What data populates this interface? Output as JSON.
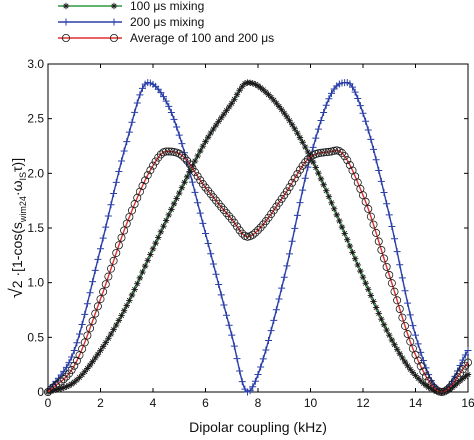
{
  "chart_data": {
    "type": "line",
    "xlabel": "Dipolar coupling (kHz)",
    "ylabel": "√2 ·[1-cos(s_wim24·ω_IS·τ)]",
    "ylabel_parts": {
      "root": "√",
      "two": "2",
      "dot_bracket": " ·[1-cos(s",
      "sub_wim": "wim24",
      "dot_omega": "·ω",
      "sub_is": "IS",
      "tau_close": "τ)]"
    },
    "xlim": [
      0,
      16
    ],
    "ylim": [
      0,
      3.0
    ],
    "xticks": [
      "0",
      "2",
      "4",
      "6",
      "8",
      "10",
      "12",
      "14",
      "16"
    ],
    "yticks": [
      "0",
      "0.5",
      "1.0",
      "1.5",
      "2.0",
      "2.5",
      "3.0"
    ],
    "grid": false,
    "legend_position": "top-left, above plot",
    "series": [
      {
        "name": "100 μs mixing",
        "line_color": "#2e9a3e",
        "marker": "asterisk",
        "marker_color": "#1a1a1a",
        "x": [
          0,
          1,
          2,
          3,
          4,
          5,
          6,
          7,
          7.6,
          8,
          9,
          10,
          11,
          12,
          13,
          14,
          15,
          16
        ],
        "values": [
          0,
          0.09,
          0.38,
          0.79,
          1.31,
          1.82,
          2.29,
          2.64,
          2.83,
          2.8,
          2.55,
          2.15,
          1.62,
          1.05,
          0.52,
          0.15,
          0.0,
          0.16
        ]
      },
      {
        "name": "200 μs mixing",
        "line_color": "#2a3fa8",
        "marker": "plus",
        "marker_color": "#2a3fa8",
        "x": [
          0,
          1,
          2,
          3,
          3.8,
          4.5,
          5,
          6,
          7,
          7.6,
          8,
          9,
          10,
          11,
          11.4,
          12,
          13,
          14,
          15,
          16
        ],
        "values": [
          0,
          0.38,
          1.31,
          2.29,
          2.83,
          2.66,
          2.35,
          1.45,
          0.52,
          0.0,
          0.16,
          1.05,
          2.15,
          2.8,
          2.83,
          2.55,
          1.62,
          0.52,
          0.0,
          0.38
        ]
      },
      {
        "name": "Average of 100 and 200 μs",
        "line_color": "#e03030",
        "marker": "circle",
        "marker_color": "#1a1a1a",
        "x": [
          0,
          1,
          2,
          3,
          4,
          4.5,
          5,
          6,
          7,
          7.6,
          8,
          9,
          10,
          10.8,
          11,
          12,
          13,
          14,
          15,
          16
        ],
        "values": [
          0,
          0.24,
          0.85,
          1.54,
          2.07,
          2.2,
          2.18,
          1.87,
          1.58,
          1.42,
          1.48,
          1.8,
          2.15,
          2.2,
          2.21,
          1.8,
          1.07,
          0.34,
          0.0,
          0.27
        ]
      }
    ]
  }
}
